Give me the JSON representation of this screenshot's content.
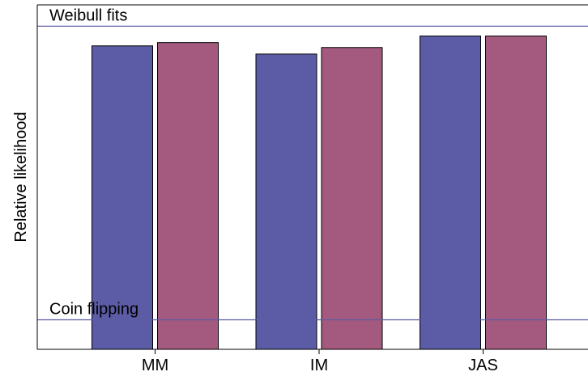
{
  "chart_data": {
    "type": "bar",
    "ylabel": "Relative likelihood",
    "categories": [
      "MM",
      "IM",
      "JAS"
    ],
    "series": [
      {
        "values": [
          0.925,
          0.9,
          0.955
        ],
        "color": "#5c5ba6"
      },
      {
        "values": [
          0.935,
          0.92,
          0.955
        ],
        "color": "#a45a7e"
      }
    ],
    "ylim": [
      0,
      1.05
    ],
    "y_ticks_labeled": false,
    "grid": false,
    "legend": "none",
    "reference_lines": [
      {
        "label": "Weibull fits",
        "value": 0.985,
        "color": "#5c5ba6"
      },
      {
        "label": "Coin flipping",
        "value": 0.09,
        "color": "#5c5ba6"
      }
    ]
  }
}
